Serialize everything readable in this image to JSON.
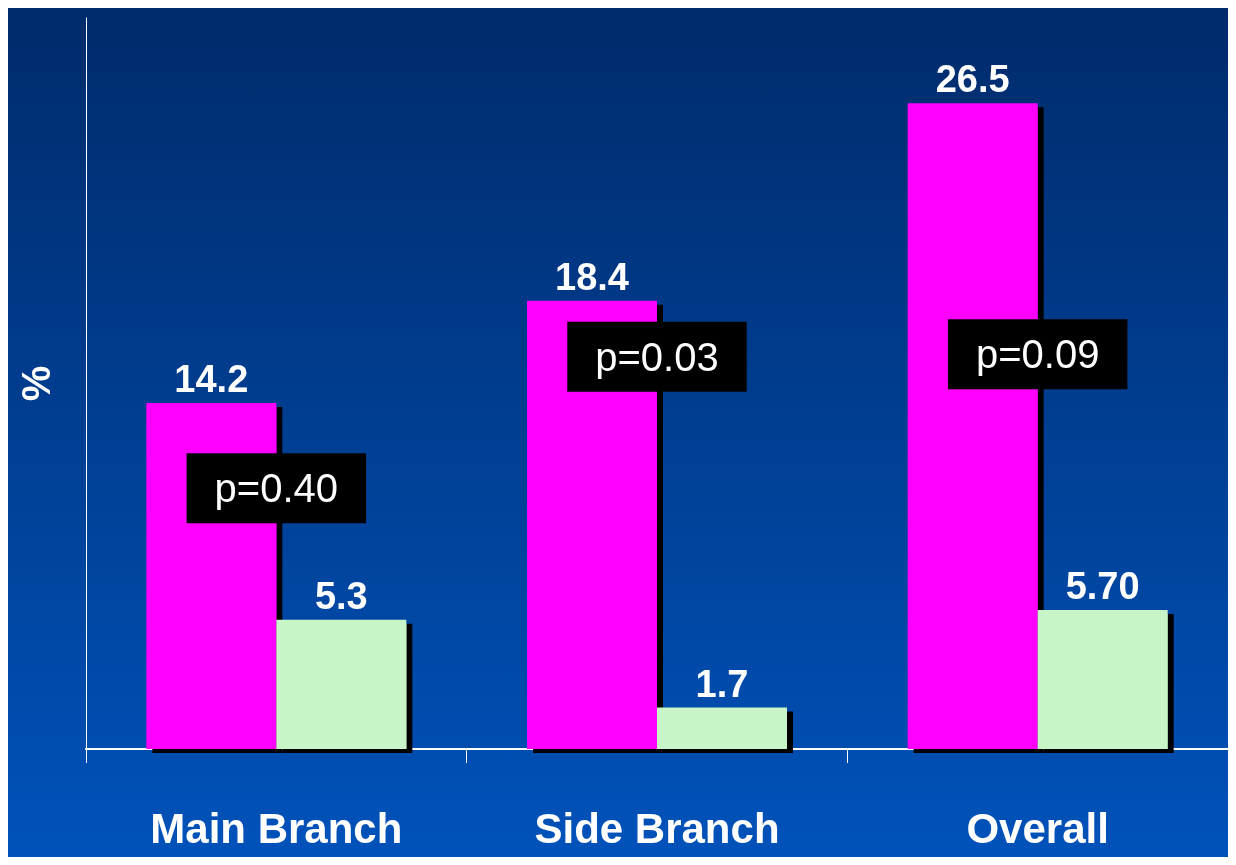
{
  "chart_data": {
    "type": "bar",
    "ylabel": "%",
    "categories": [
      "Main Branch",
      "Side Branch",
      "Overall"
    ],
    "series": [
      {
        "color": "#ff00ff",
        "values": [
          14.2,
          18.4,
          26.5
        ],
        "value_labels": [
          "14.2",
          "18.4",
          "26.5"
        ]
      },
      {
        "color": "#c8f5c8",
        "values": [
          5.3,
          1.7,
          5.7
        ],
        "value_labels": [
          "5.3",
          "1.7",
          "5.70"
        ]
      }
    ],
    "annotations": [
      {
        "text": "p=0.40",
        "x": "Main Branch",
        "y": 10.7
      },
      {
        "text": "p=0.03",
        "x": "Side Branch",
        "y": 16.1
      },
      {
        "text": "p=0.09",
        "x": "Overall",
        "y": 16.2
      }
    ],
    "grid": false
  }
}
